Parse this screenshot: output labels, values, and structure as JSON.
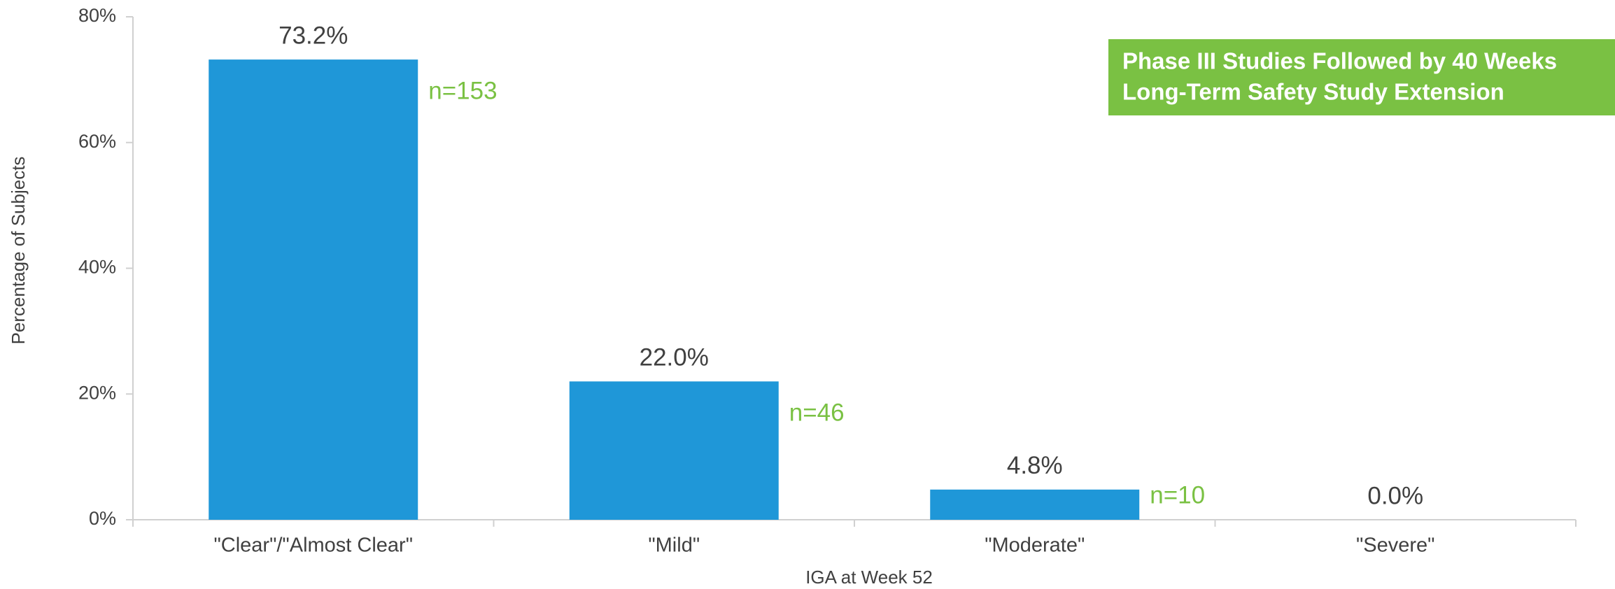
{
  "chart_data": {
    "type": "bar",
    "categories": [
      "\"Clear\"/\"Almost Clear\"",
      "\"Mild\"",
      "\"Moderate\"",
      "\"Severe\""
    ],
    "values": [
      73.2,
      22.0,
      4.8,
      0.0
    ],
    "value_labels": [
      "73.2%",
      "22.0%",
      "4.8%",
      "0.0%"
    ],
    "annotations": [
      "n=153",
      "n=46",
      "n=10"
    ],
    "color": "#1f97d8",
    "annotation_color": "#7ac143",
    "legend": {
      "position": "upper right",
      "color": "#7ac143",
      "lines": [
        "Phase III Studies Followed by 40 Weeks",
        "Long-Term Safety Study Extension"
      ]
    },
    "xlabel": "IGA at Week 52",
    "ylabel": "Percentage of Subjects",
    "ylim": [
      0,
      80
    ],
    "yticks": [
      {
        "value": 0,
        "label": "0%"
      },
      {
        "value": 20,
        "label": "20%"
      },
      {
        "value": 40,
        "label": "40%"
      },
      {
        "value": 60,
        "label": "60%"
      },
      {
        "value": 80,
        "label": "80%"
      }
    ],
    "grid": false
  }
}
